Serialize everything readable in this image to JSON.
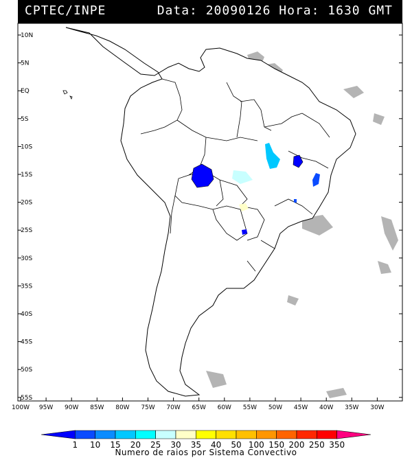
{
  "header": {
    "source": "CPTEC/INPE",
    "date_label": "Data:",
    "date": "20090126",
    "time_label": "Hora:",
    "time": "1630 GMT"
  },
  "map": {
    "lat_labels": [
      "10N",
      "5N",
      "EQ",
      "5S",
      "10S",
      "15S",
      "20S",
      "25S",
      "30S",
      "35S",
      "40S",
      "45S",
      "50S",
      "55S"
    ],
    "lon_labels": [
      "100W",
      "95W",
      "90W",
      "85W",
      "80W",
      "75W",
      "70W",
      "65W",
      "60W",
      "55W",
      "50W",
      "45W",
      "40W",
      "35W",
      "30W"
    ],
    "land_color": "#ffffff",
    "cloud_color": "#b4b4b4"
  },
  "legend": {
    "ticks": [
      "1",
      "10",
      "15",
      "20",
      "25",
      "30",
      "35",
      "40",
      "50",
      "100",
      "150",
      "200",
      "250",
      "350"
    ],
    "colors": [
      "#0000ff",
      "#0a4bff",
      "#0a8cff",
      "#00c8ff",
      "#00ffff",
      "#c8ffff",
      "#ffffc8",
      "#ffff00",
      "#ffe000",
      "#ffc000",
      "#ff9600",
      "#ff6400",
      "#ff2800",
      "#ff0000",
      "#ff0080"
    ],
    "caption": "Numero de raios por Sistema Convectivo"
  }
}
